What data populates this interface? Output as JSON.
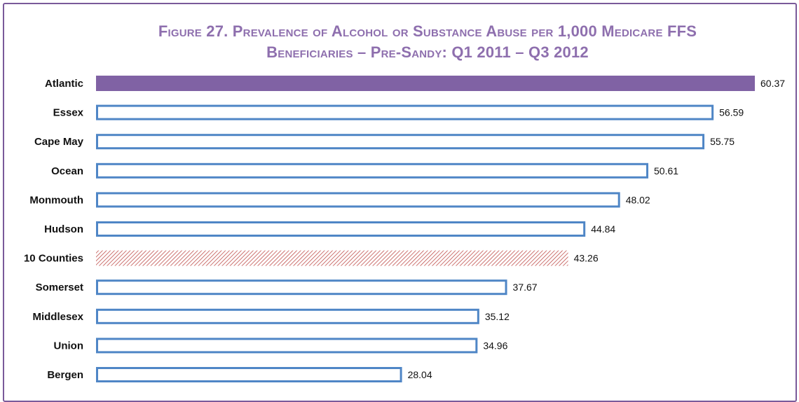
{
  "chart_data": {
    "type": "bar",
    "orientation": "horizontal",
    "title": "Figure 27. Prevalence of Alcohol or Substance Abuse per 1,000 Medicare FFS Beneficiaries – Pre-Sandy: Q1 2011 – Q3 2012",
    "title_lines": [
      "Figure 27. Prevalence of Alcohol or Substance Abuse per 1,000 Medicare FFS",
      "Beneficiaries – Pre-Sandy: Q1 2011 – Q3 2012"
    ],
    "categories": [
      "Atlantic",
      "Essex",
      "Cape May",
      "Ocean",
      "Monmouth",
      "Hudson",
      "10 Counties",
      "Somerset",
      "Middlesex",
      "Union",
      "Bergen"
    ],
    "values": [
      60.37,
      56.59,
      55.75,
      50.61,
      48.02,
      44.84,
      43.26,
      37.67,
      35.12,
      34.96,
      28.04
    ],
    "value_labels": [
      "60.37",
      "56.59",
      "55.75",
      "50.61",
      "48.02",
      "44.84",
      "43.26",
      "37.67",
      "35.12",
      "34.96",
      "28.04"
    ],
    "bar_styles": [
      "highlight",
      "outline",
      "outline",
      "outline",
      "outline",
      "outline",
      "hatched",
      "outline",
      "outline",
      "outline",
      "outline"
    ],
    "xlabel": "",
    "ylabel": "",
    "xlim": [
      0,
      60.37
    ],
    "grid": false,
    "legend": "none"
  },
  "colors": {
    "title": "#8e6fae",
    "frame": "#7a5a9a",
    "highlight_fill": "#8062a4",
    "outline_stroke": "#4f86c6",
    "hatch_stroke": "#c0504d",
    "text": "#111111"
  }
}
